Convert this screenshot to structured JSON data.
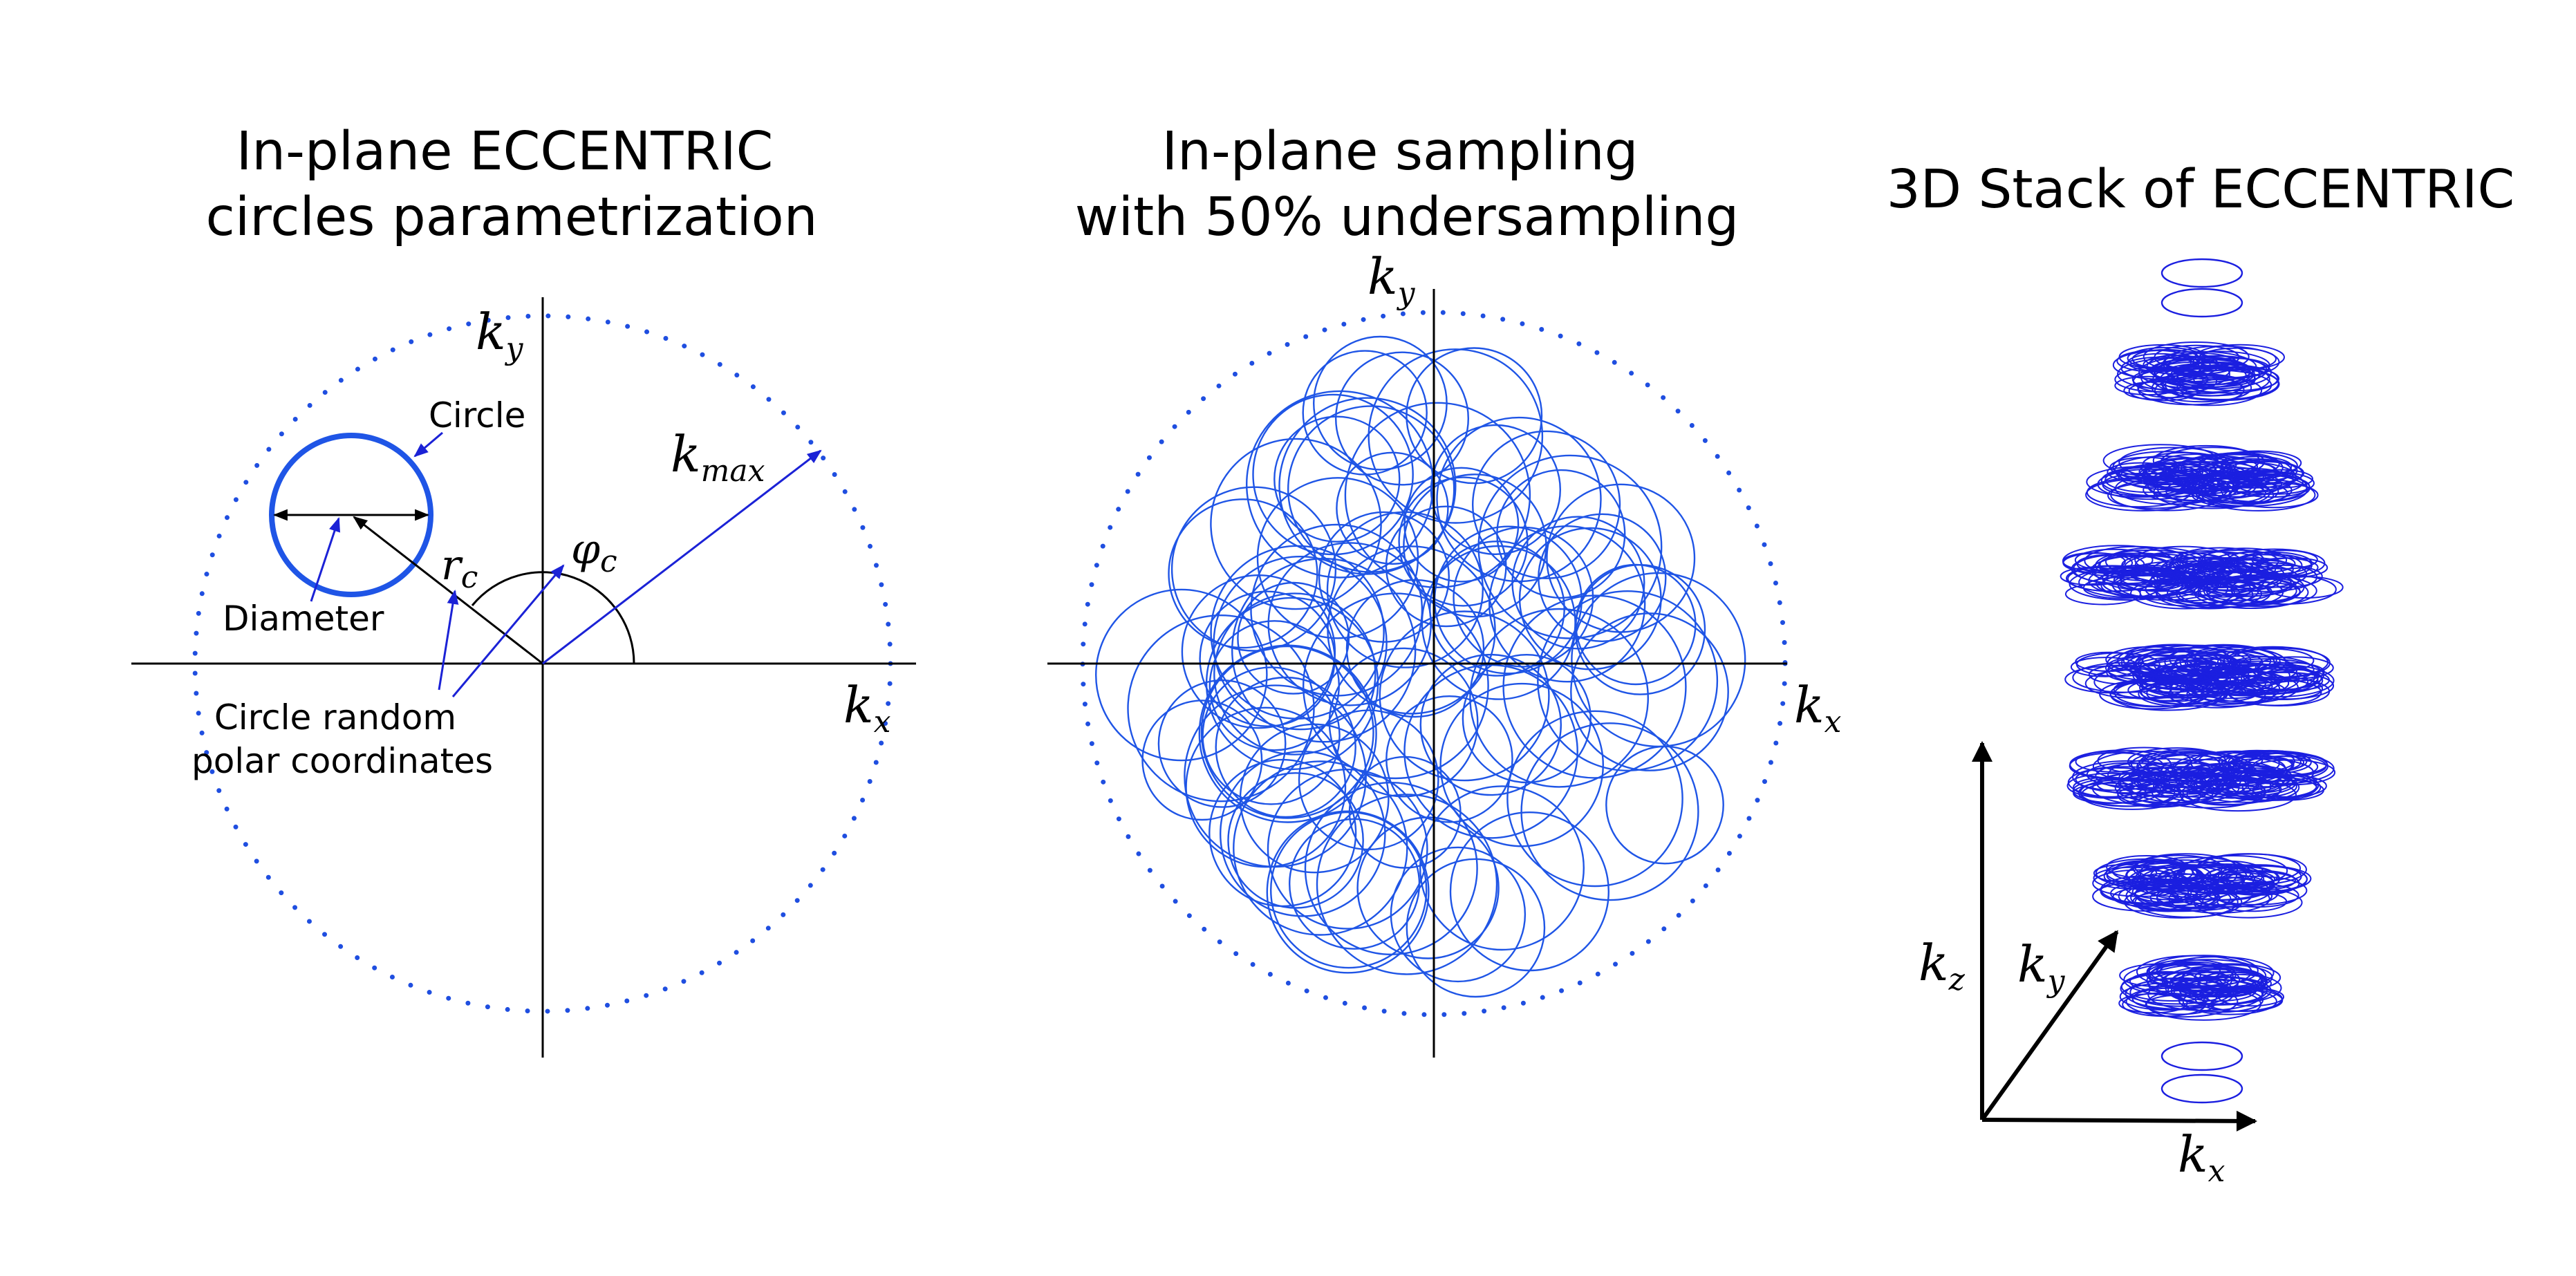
{
  "panels": {
    "left": {
      "title_line1": "In-plane ECCENTRIC",
      "title_line2": "circles parametrization",
      "kx_main": "k",
      "kx_sub": "x",
      "ky_main": "k",
      "ky_sub": "y",
      "kmax_main": "k",
      "kmax_sub": "max",
      "rc_main": "r",
      "rc_sub": "c",
      "phic_main": "φ",
      "phic_sub": "c",
      "circle_label": "Circle",
      "diameter_label": "Diameter",
      "polar_line1": "Circle random",
      "polar_line2": "polar coordinates"
    },
    "middle": {
      "title_line1": "In-plane sampling",
      "title_line2": "with 50% undersampling",
      "kx_main": "k",
      "kx_sub": "x",
      "ky_main": "k",
      "ky_sub": "y"
    },
    "right": {
      "title": "3D Stack of ECCENTRIC",
      "kx_main": "k",
      "kx_sub": "x",
      "ky_main": "k",
      "ky_sub": "y",
      "kz_main": "k",
      "kz_sub": "z"
    }
  },
  "colors": {
    "dotted_boundary": "#1f4ee0",
    "circles": "#1f55e6",
    "stack_circles": "#1b1fe0",
    "arrows": "#1b22d6",
    "axes": "#000000"
  }
}
